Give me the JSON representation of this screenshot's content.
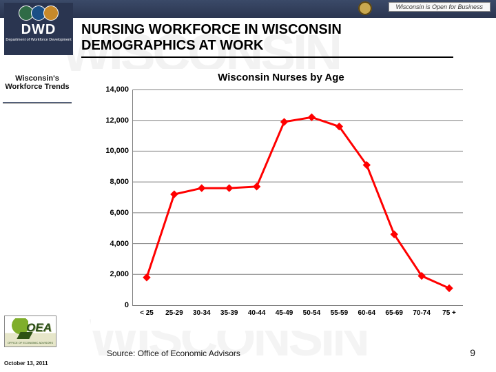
{
  "header": {
    "tagline": "Wisconsin is Open for Business",
    "logo_main": "DWD",
    "logo_sub": "Department of Workforce Development",
    "circle_colors": [
      "#2f6b46",
      "#1a4f86",
      "#c7892a"
    ]
  },
  "title": {
    "line1": "NURSING WORKFORCE IN WISCONSIN",
    "line2": "DEMOGRAPHICS AT WORK"
  },
  "watermark": "WISCONSIN",
  "sidebar": {
    "title": "Wisconsin's Workforce Trends"
  },
  "oea": {
    "acronym": "OEA",
    "full": "OFFICE OF ECONOMIC ADVISORS"
  },
  "footer": {
    "date": "October 13, 2011",
    "source": "Source: Office of Economic Advisors",
    "page": "9"
  },
  "chart": {
    "type": "line",
    "title": "Wisconsin Nurses by Age",
    "categories": [
      "< 25",
      "25-29",
      "30-34",
      "35-39",
      "40-44",
      "45-49",
      "50-54",
      "55-59",
      "60-64",
      "65-69",
      "70-74",
      "75 +"
    ],
    "values": [
      1800,
      7200,
      7600,
      7600,
      7700,
      11900,
      12200,
      11600,
      9100,
      4600,
      1900,
      1100
    ],
    "ylim": [
      0,
      14000
    ],
    "ytick_step": 2000,
    "yticks": [
      "0",
      "2,000",
      "4,000",
      "6,000",
      "8,000",
      "10,000",
      "12,000",
      "14,000"
    ],
    "line_color": "#ff0000",
    "line_width": 3,
    "marker_style": "diamond",
    "marker_size": 5,
    "background_color": "#ffffff",
    "grid_color": "#808080",
    "axis_color": "#808080",
    "title_fontsize": 15,
    "tick_fontsize": 11,
    "tick_fontweight": "bold"
  }
}
